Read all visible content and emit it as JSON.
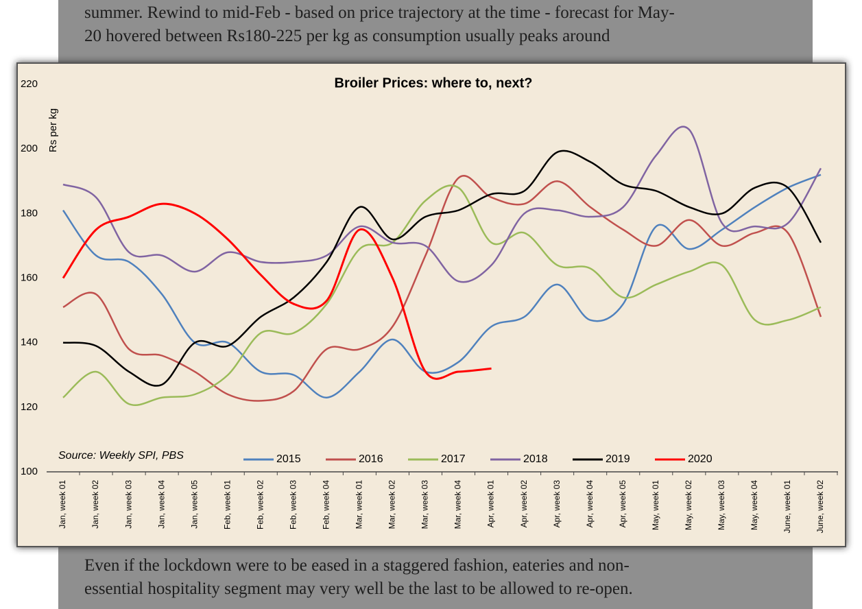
{
  "article": {
    "text_top": [
      "summer. Rewind to mid-Feb - based on price trajectory at the time - forecast for May-",
      "20 hovered between Rs180-225 per kg as consumption usually peaks around"
    ],
    "text_bottom": [
      "Even if the lockdown were to be eased in a staggered fashion, eateries and non-",
      "essential hospitality segment may very well be the last to be allowed to re-open."
    ]
  },
  "chart_data": {
    "type": "line",
    "title": "Broiler Prices: where to, next?",
    "y_label": "Rs per kg",
    "annotation": "Source: Weekly SPI, PBS",
    "categories": [
      "Jan, week 01",
      "Jan, week 02",
      "Jan, week 03",
      "Jan, week 04",
      "Jan, week 05",
      "Feb, week 01",
      "Feb, week 02",
      "Feb, week 03",
      "Feb, week 04",
      "Mar, week 01",
      "Mar, week 02",
      "Mar, week 03",
      "Mar, week 04",
      "Apr, week 01",
      "Apr, week 02",
      "Apr, week 03",
      "Apr, week 04",
      "Apr, week 05",
      "May, week 01",
      "May, week 02",
      "May, week 03",
      "May, week 04",
      "June, week 01",
      "June, week 02"
    ],
    "series": [
      {
        "name": "2015",
        "color": "#4f81bd",
        "values": [
          181,
          167,
          165,
          155,
          140,
          140,
          131,
          130,
          123,
          131,
          141,
          131,
          134,
          145,
          148,
          158,
          147,
          152,
          176,
          169,
          175,
          182,
          188,
          192
        ]
      },
      {
        "name": "2016",
        "color": "#c0504d",
        "values": [
          151,
          155,
          138,
          136,
          131,
          124,
          122,
          125,
          138,
          138,
          145,
          167,
          191,
          185,
          183,
          190,
          182,
          175,
          170,
          178,
          170,
          174,
          174,
          148
        ]
      },
      {
        "name": "2017",
        "color": "#9bbb59",
        "values": [
          123,
          131,
          121,
          123,
          124,
          130,
          143,
          143,
          152,
          169,
          171,
          184,
          188,
          171,
          174,
          164,
          163,
          154,
          158,
          162,
          164,
          147,
          147,
          151
        ]
      },
      {
        "name": "2018",
        "color": "#8064a2",
        "values": [
          189,
          185,
          168,
          167,
          162,
          168,
          165,
          165,
          167,
          176,
          171,
          170,
          159,
          164,
          180,
          181,
          179,
          182,
          198,
          206,
          177,
          176,
          177,
          194
        ]
      },
      {
        "name": "2019",
        "color": "#000000",
        "values": [
          140,
          139,
          131,
          127,
          140,
          139,
          148,
          154,
          165,
          182,
          172,
          179,
          181,
          186,
          187,
          199,
          196,
          189,
          187,
          182,
          180,
          188,
          188,
          171
        ]
      },
      {
        "name": "2020",
        "color": "#ff0000",
        "values": [
          160,
          175,
          179,
          183,
          180,
          172,
          161,
          152,
          153,
          175,
          160,
          131,
          131,
          132,
          null,
          null,
          null,
          null,
          null,
          null,
          null,
          null,
          null,
          null
        ]
      }
    ],
    "ylim": [
      100,
      220
    ],
    "yticks": [
      100,
      120,
      140,
      160,
      180,
      200,
      220
    ],
    "grid": false,
    "legend": "bottom"
  }
}
